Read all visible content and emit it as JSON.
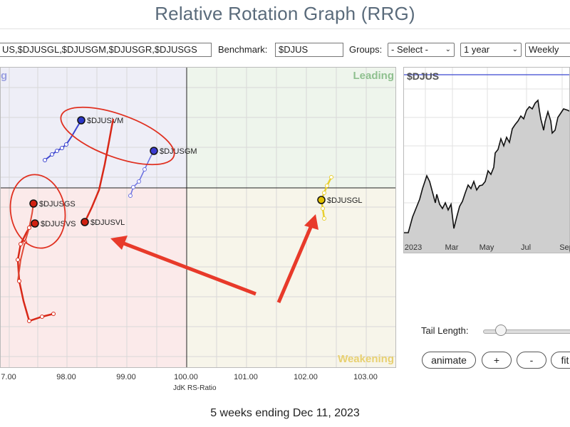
{
  "page": {
    "title": "Relative Rotation Graph (RRG)"
  },
  "controls": {
    "symbols_value": "US,$DJUSGL,$DJUSGM,$DJUSGR,$DJUSGS",
    "benchmark_label": "Benchmark:",
    "benchmark_value": "$DJUS",
    "groups_label": "Groups:",
    "groups_select": "- Select -",
    "period_select": "1 year",
    "frequency_select": "Weekly"
  },
  "rrg": {
    "quadrants": {
      "top_left": "g",
      "leading": "Leading",
      "weakening": "Weakening"
    },
    "x_ticks": [
      "7.00",
      "98.00",
      "99.00",
      "100.00",
      "101.00",
      "102.00",
      "103.00"
    ],
    "x_axis_title": "JdK RS-Ratio",
    "securities": [
      {
        "name": "$DJUSVM",
        "color": "#1f2fb0"
      },
      {
        "name": "$DJUSGM",
        "color": "#3b3bd0"
      },
      {
        "name": "$DJUSGS",
        "color": "#d02010"
      },
      {
        "name": "$DJUSVS",
        "color": "#d02010",
        "label": "$DJUSVS"
      },
      {
        "name": "$DJUSVL",
        "color": "#d02010"
      },
      {
        "name": "$DJUSGL",
        "color": "#e0c000"
      }
    ],
    "colors": {
      "leading_bg": "#eef5ec",
      "weakening_bg": "#f7f5ea",
      "lagging_bg": "#fbeaea",
      "improving_bg": "#eeeef7",
      "annotation_red": "#e03020"
    }
  },
  "price_chart": {
    "symbol": "$DJUS",
    "months": [
      "2023",
      "Mar",
      "May",
      "Jul",
      "Sep"
    ]
  },
  "tail": {
    "label": "Tail Length:",
    "value": 0.2
  },
  "buttons": {
    "animate": "animate",
    "plus": "+",
    "minus": "-",
    "fit": "fit"
  },
  "footer": {
    "text": "5 weeks ending Dec 11, 2023"
  }
}
